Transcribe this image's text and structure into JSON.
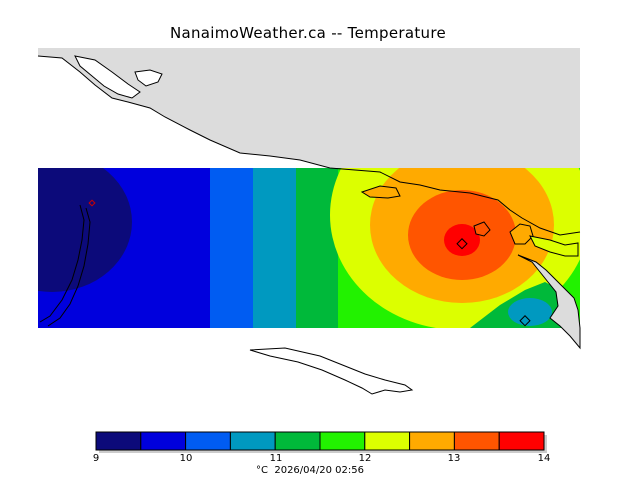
{
  "title": "NanaimoWeather.ca -- Temperature",
  "footer": {
    "unit": "°C",
    "timestamp": "2026/04/20 02:56"
  },
  "colorbar": {
    "ticks": [
      "9",
      "10",
      "11",
      "12",
      "13",
      "14"
    ],
    "bins": [
      {
        "from": 9.0,
        "to": 9.5,
        "color": "#0c0a7a"
      },
      {
        "from": 9.5,
        "to": 10.0,
        "color": "#0000dd"
      },
      {
        "from": 10.0,
        "to": 10.5,
        "color": "#005cf2"
      },
      {
        "from": 10.5,
        "to": 11.0,
        "color": "#0099c0"
      },
      {
        "from": 11.0,
        "to": 11.5,
        "color": "#00b93a"
      },
      {
        "from": 11.5,
        "to": 12.0,
        "color": "#22f200"
      },
      {
        "from": 12.0,
        "to": 12.5,
        "color": "#dcff00"
      },
      {
        "from": 12.5,
        "to": 13.0,
        "color": "#ffaa00"
      },
      {
        "from": 13.0,
        "to": 13.5,
        "color": "#ff5500"
      },
      {
        "from": 13.5,
        "to": 14.0,
        "color": "#ff0000"
      }
    ]
  },
  "colors": {
    "land": "#dcdcdc",
    "coastline": "#000000",
    "background": "#ffffff"
  }
}
